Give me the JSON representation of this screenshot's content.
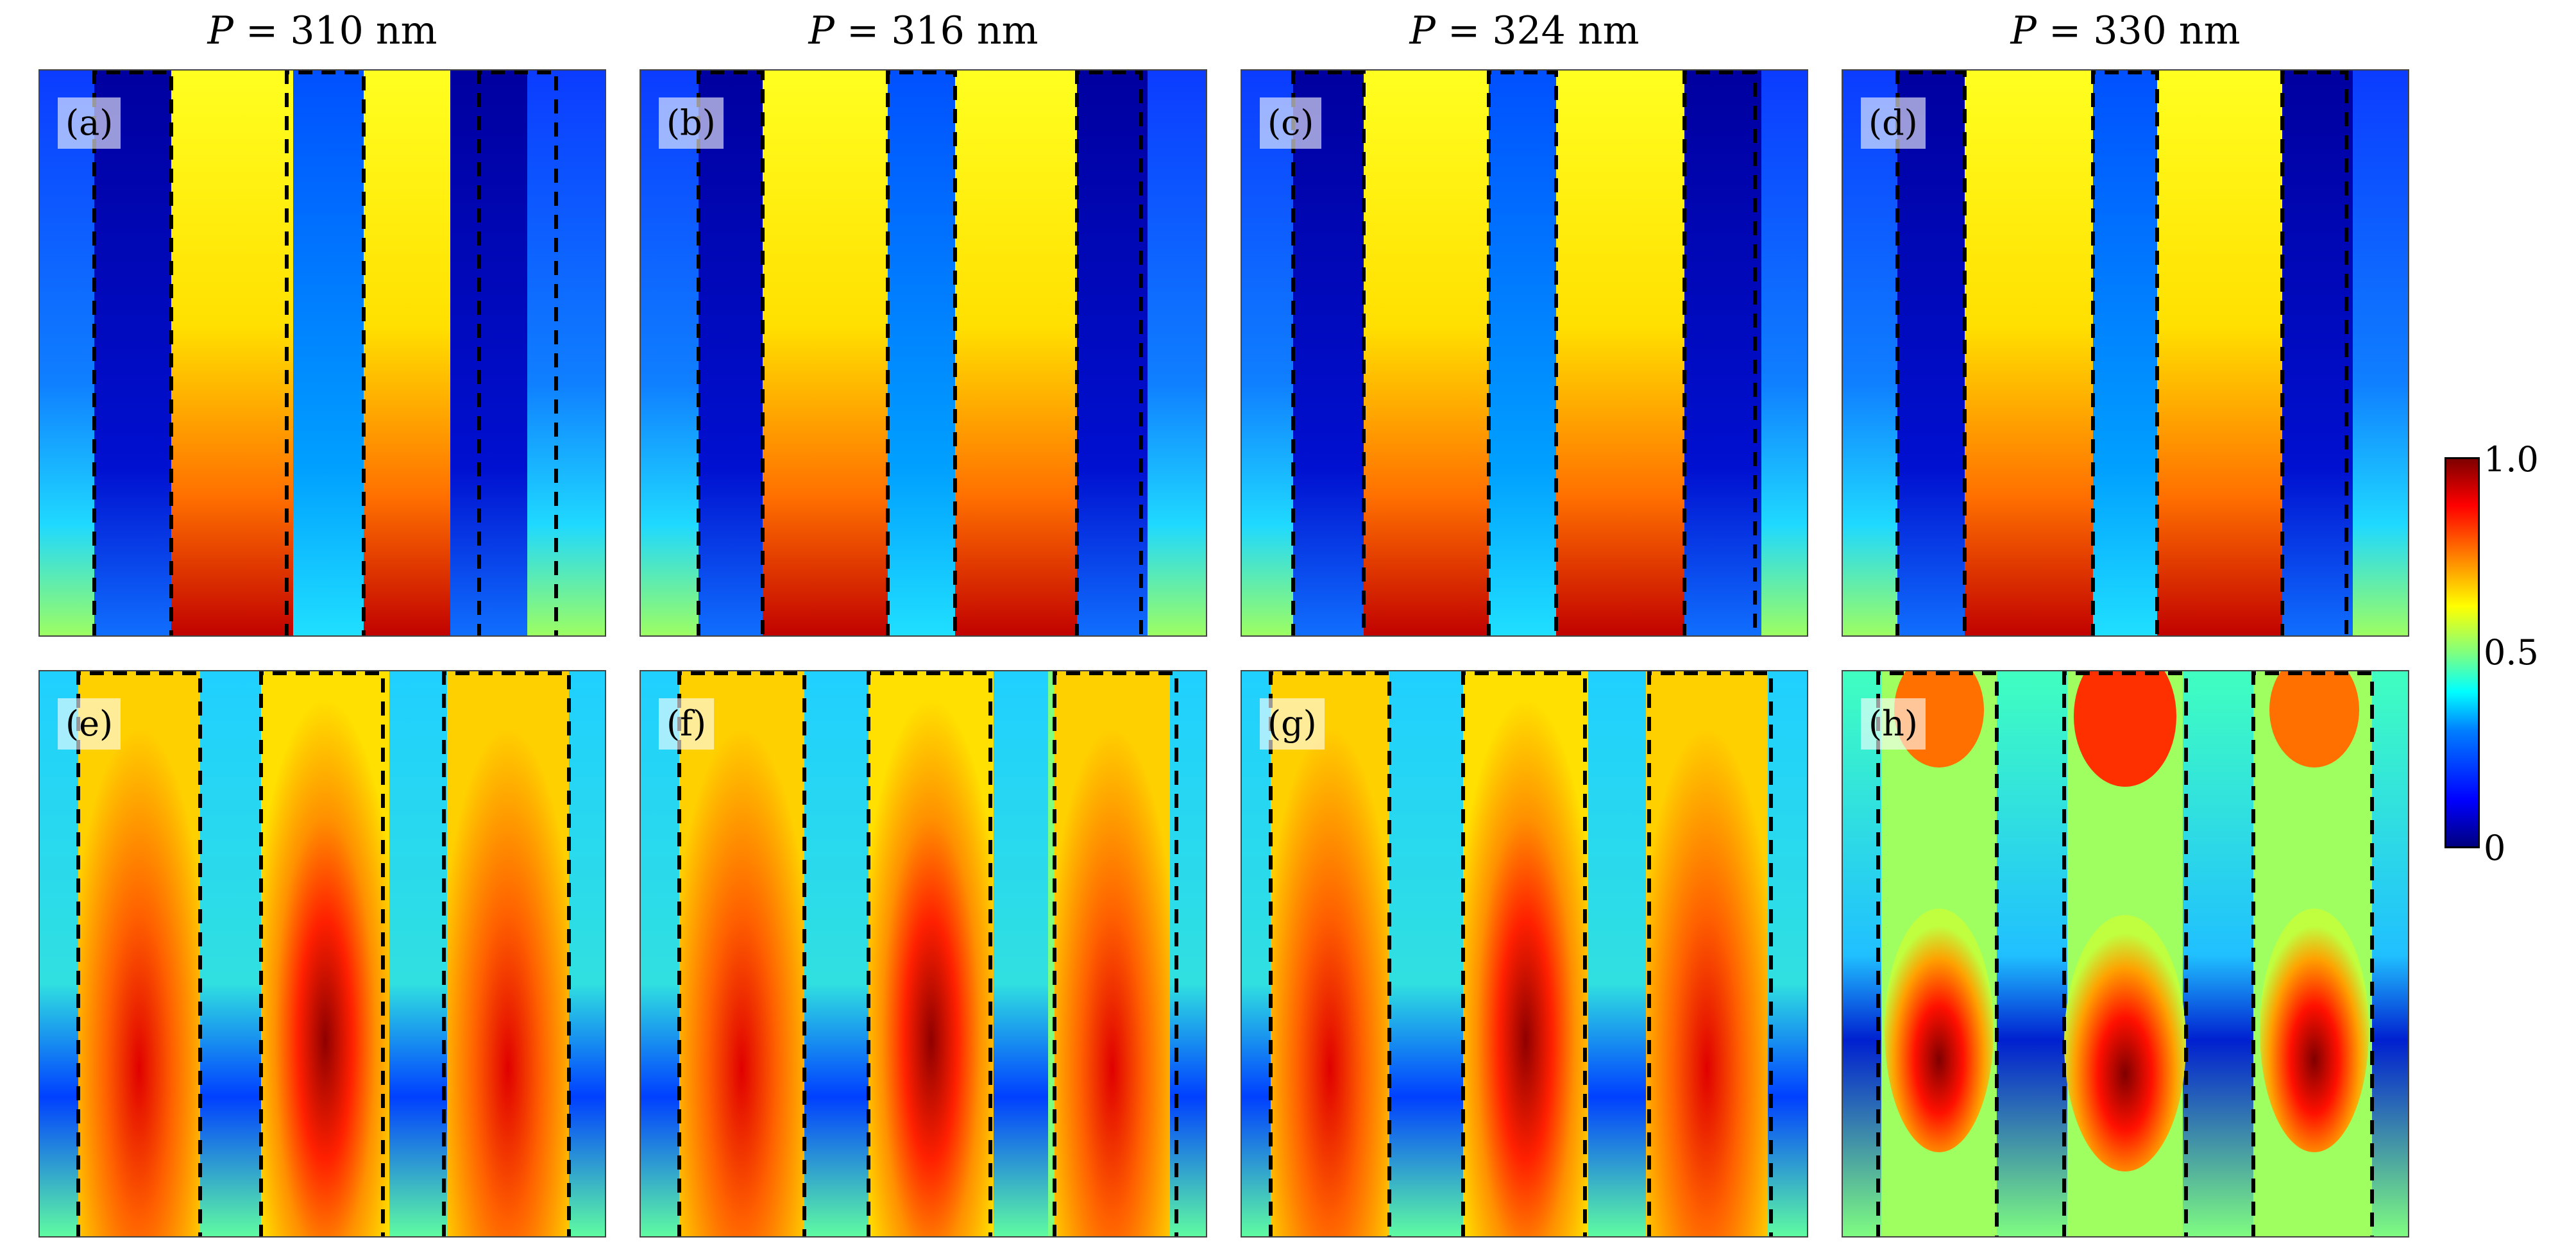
{
  "columns": [
    {
      "var": "P",
      "value": "= 310 nm"
    },
    {
      "var": "P",
      "value": "= 316 nm"
    },
    {
      "var": "P",
      "value": "= 324 nm"
    },
    {
      "var": "P",
      "value": "= 330 nm"
    }
  ],
  "panels": [
    "(a)",
    "(b)",
    "(c)",
    "(d)",
    "(e)",
    "(f)",
    "(g)",
    "(h)"
  ],
  "colorbar": {
    "max_label": "1.0",
    "mid_label": "0.5",
    "min_label": "0",
    "range": [
      0,
      1
    ],
    "colormap": "jet"
  },
  "colors": {
    "low": "#00007f",
    "mid": "#7fff7f",
    "high": "#7f0000"
  }
}
